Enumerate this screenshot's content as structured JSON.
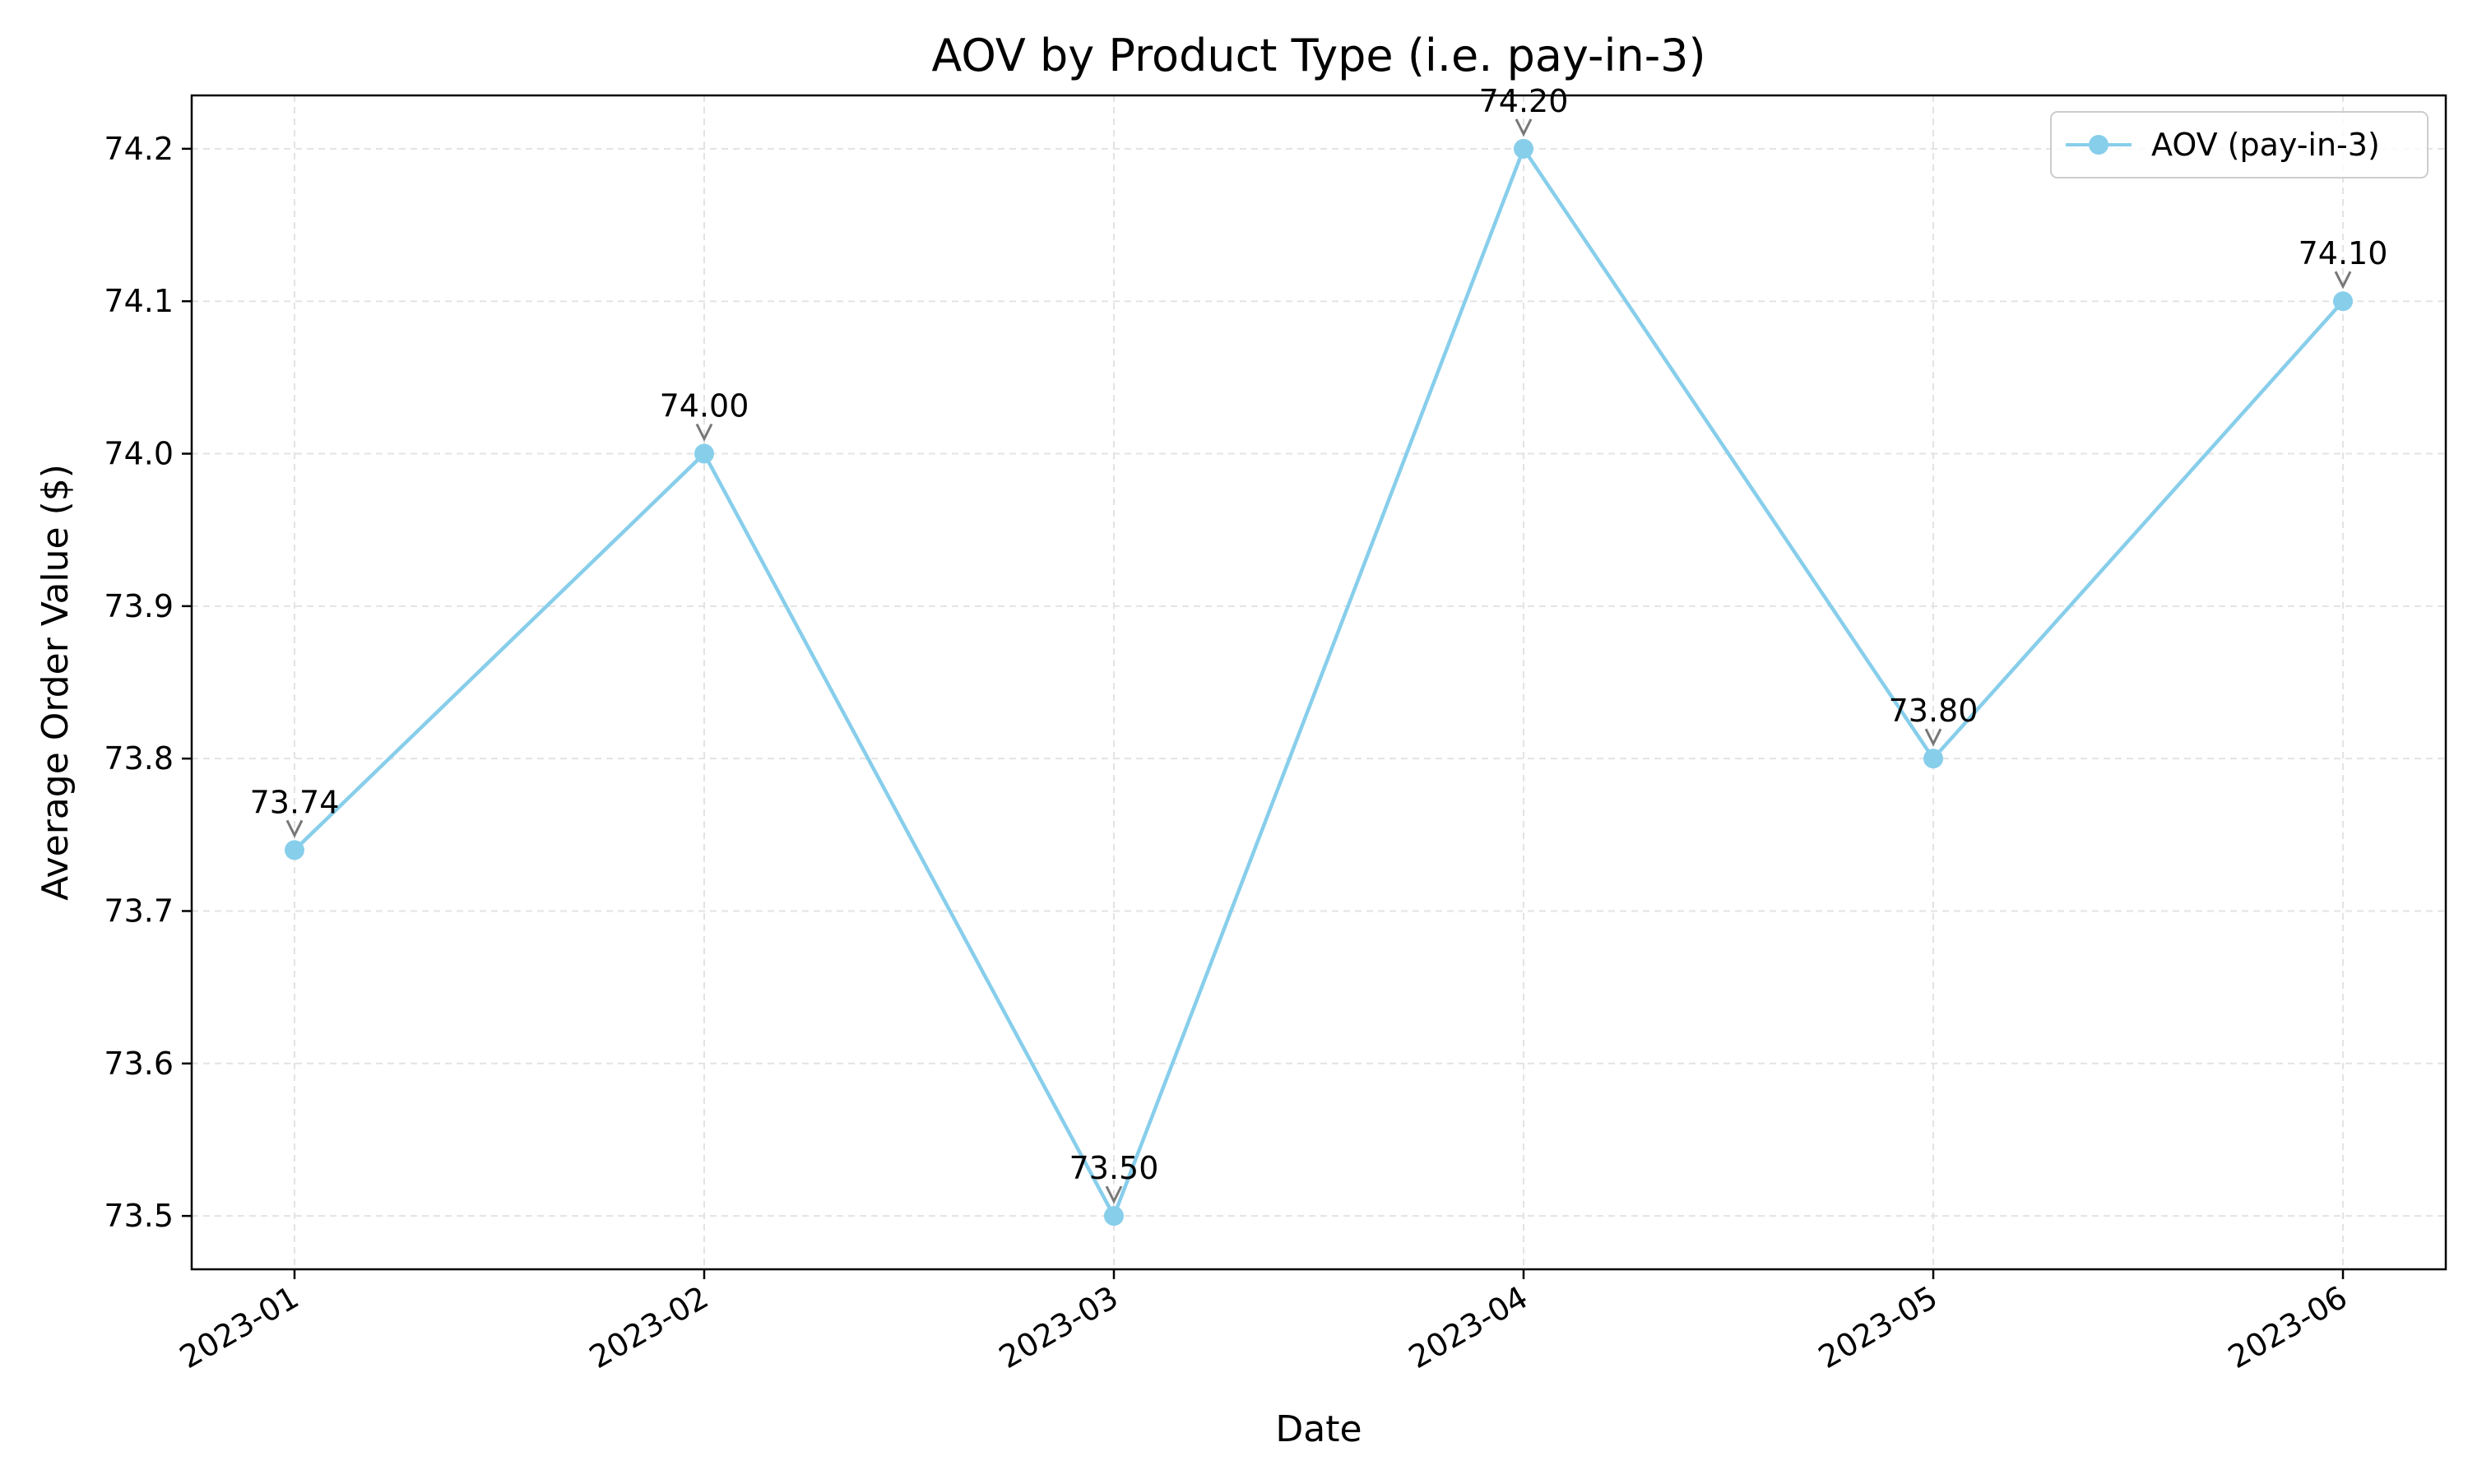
{
  "chart_data": {
    "type": "line",
    "title": "AOV by Product Type (i.e. pay-in-3)",
    "xlabel": "Date",
    "ylabel": "Average Order Value ($)",
    "categories": [
      "2023-01",
      "2023-02",
      "2023-03",
      "2023-04",
      "2023-05",
      "2023-06"
    ],
    "series": [
      {
        "name": "AOV (pay-in-3)",
        "values": [
          73.74,
          74.0,
          73.5,
          74.2,
          73.8,
          74.1
        ],
        "labels": [
          "73.74",
          "74.00",
          "73.50",
          "74.20",
          "73.80",
          "74.10"
        ],
        "color": "#87ceeb"
      }
    ],
    "ylim": [
      73.465,
      74.235
    ],
    "yticks": [
      73.5,
      73.6,
      73.7,
      73.8,
      73.9,
      74.0,
      74.1,
      74.2
    ],
    "ytick_labels": [
      "73.5",
      "73.6",
      "73.7",
      "73.8",
      "73.9",
      "74.0",
      "74.1",
      "74.2"
    ],
    "grid": true,
    "legend_position": "top-right"
  }
}
